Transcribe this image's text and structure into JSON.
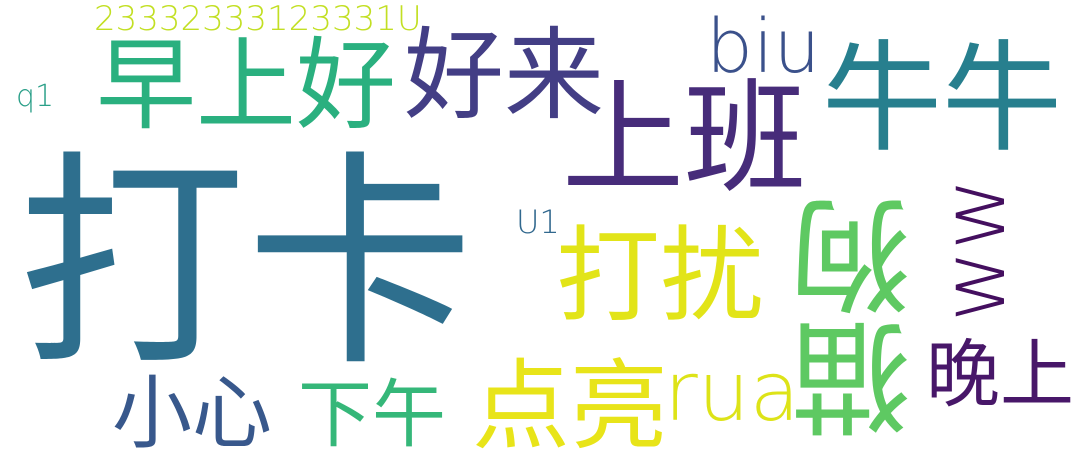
{
  "words": {
    "daka": {
      "text": "打卡",
      "color": "#2e6f8e"
    },
    "shangban": {
      "text": "上班",
      "color": "#472c7a"
    },
    "niuniu": {
      "text": "牛牛",
      "color": "#277f8e"
    },
    "zaoshang": {
      "text": "早上好",
      "color": "#2ab07f"
    },
    "haolai": {
      "text": "好来",
      "color": "#433e85"
    },
    "biu": {
      "text": "biu",
      "color": "#3b518b"
    },
    "num": {
      "text": "23332333123331U",
      "color": "#c2df23"
    },
    "q1": {
      "text": "q1",
      "color": "#2a9f88"
    },
    "u1": {
      "text": "U1",
      "color": "#31688e"
    },
    "darao": {
      "text": "打扰",
      "color": "#e2e418"
    },
    "maogou": {
      "text": "猫狗",
      "color": "#5ec962"
    },
    "ww": {
      "text": "ww",
      "color": "#440f5f"
    },
    "wanshang": {
      "text": "晚上",
      "color": "#481769"
    },
    "xiaoxin": {
      "text": "小心",
      "color": "#38588c"
    },
    "xiawu": {
      "text": "下午",
      "color": "#35b779"
    },
    "dianliang": {
      "text": "点亮",
      "color": "#e8e419"
    },
    "rua": {
      "text": "rua",
      "color": "#dde318"
    }
  }
}
